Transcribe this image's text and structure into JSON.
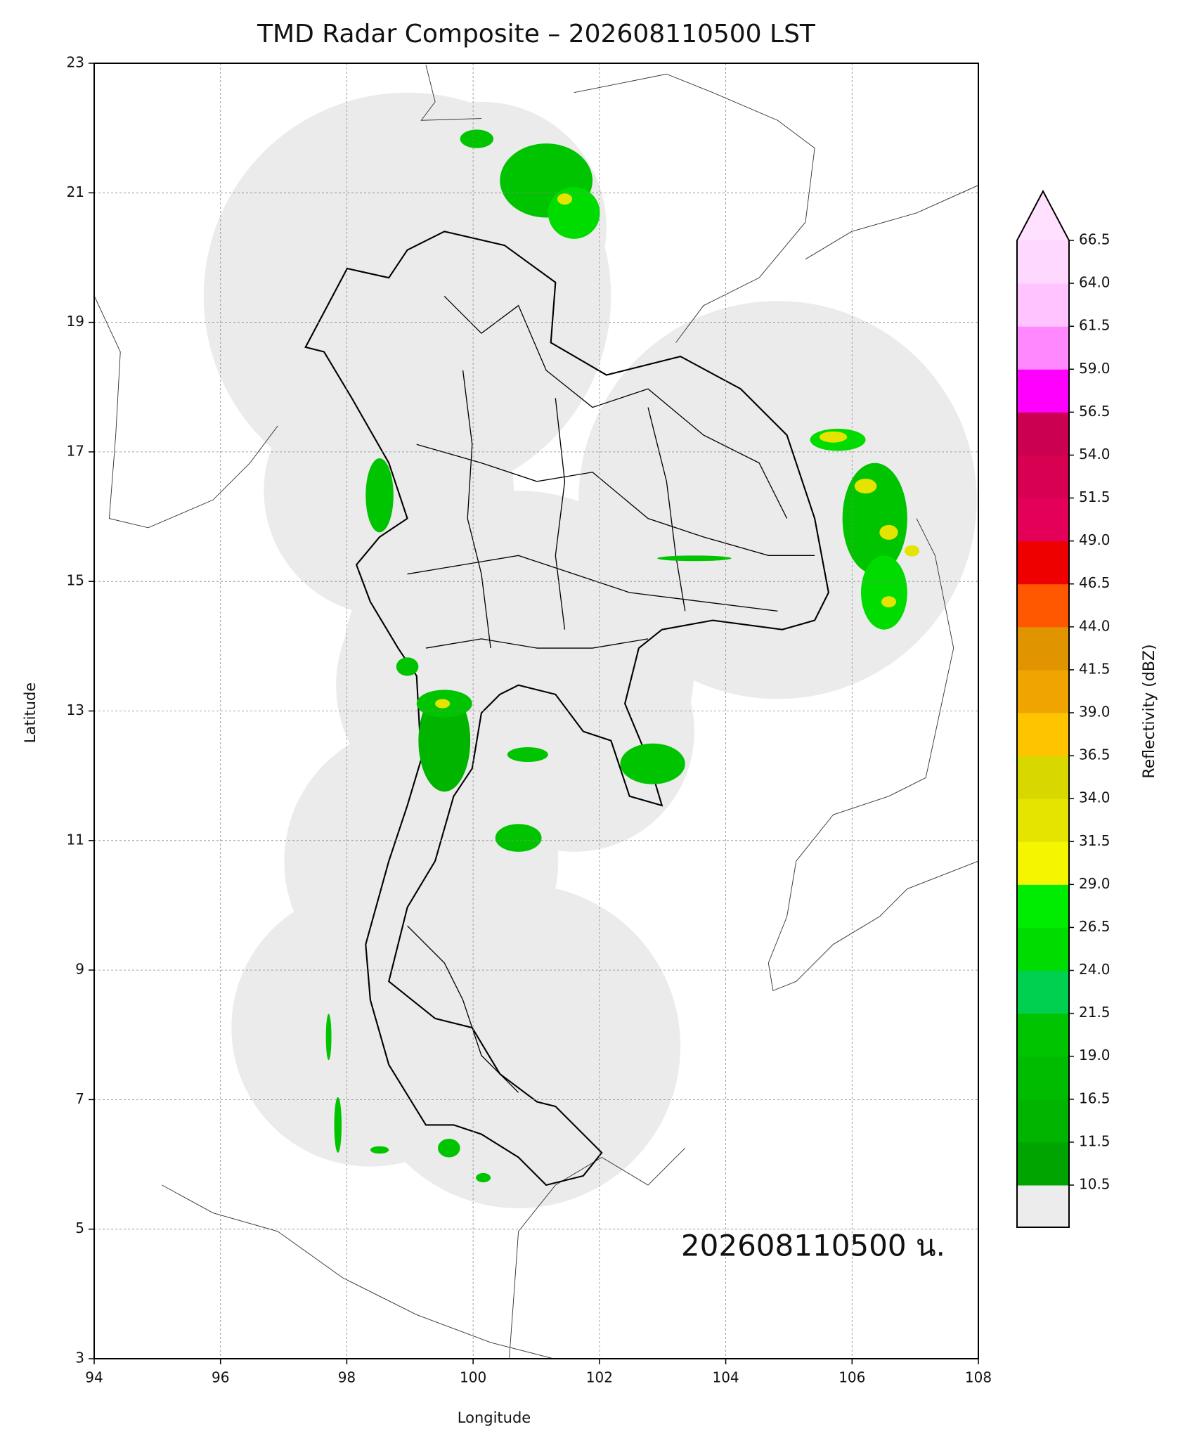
{
  "chart_data": {
    "type": "map",
    "title": "TMD Radar Composite – 202608110500 LST",
    "xlabel": "Longitude",
    "ylabel": "Latitude",
    "annotation": "202608110500 น.",
    "xlim": [
      94,
      108
    ],
    "ylim": [
      3,
      23
    ],
    "xticks": [
      94,
      96,
      98,
      100,
      102,
      104,
      106,
      108
    ],
    "yticks": [
      3,
      5,
      7,
      9,
      11,
      13,
      15,
      17,
      19,
      21,
      23
    ],
    "grid": true,
    "colorbar": {
      "label": "Reflectivity (dBZ)",
      "ticks": [
        10.5,
        11.5,
        16.5,
        {
          "value": 19,
          "label": "19.0"
        },
        21.5,
        {
          "value": 24,
          "label": "24.0"
        },
        26.5,
        {
          "value": 29,
          "label": "29.0"
        },
        31.5,
        {
          "value": 34,
          "label": "34.0"
        },
        36.5,
        {
          "value": 39,
          "label": "39.0"
        },
        41.5,
        {
          "value": 44,
          "label": "44.0"
        },
        46.5,
        {
          "value": 49,
          "label": "49.0"
        },
        51.5,
        {
          "value": 54,
          "label": "54.0"
        },
        56.5,
        {
          "value": 59,
          "label": "59.0"
        },
        61.5,
        {
          "value": 64,
          "label": "64.0"
        },
        66.5
      ],
      "colors": [
        "#00a400",
        "#00b400",
        "#00bc00",
        "#00c400",
        "#00d050",
        "#00dc00",
        "#00ec00",
        "#f5f500",
        "#e4e400",
        "#d8d800",
        "#ffc400",
        "#f0a400",
        "#e09400",
        "#ff5800",
        "#ee0000",
        "#e40058",
        "#d80050",
        "#cc0050",
        "#ff00ff",
        "#ff88ff",
        "#ffc4ff",
        "#ffd8ff"
      ],
      "under_color": "#ececec",
      "over_color": "#ffe0ff"
    }
  }
}
